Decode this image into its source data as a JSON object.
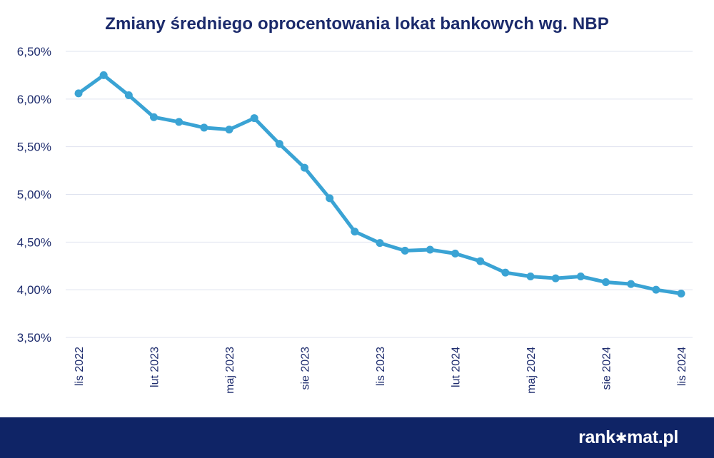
{
  "title": "Zmiany średniego oprocentowania lokat bankowych wg. NBP",
  "brand": {
    "before": "rank",
    "icon": "star-icon",
    "after": "mat.pl"
  },
  "colors": {
    "line": "#3aa3d4",
    "title": "#1b2a6b",
    "footer": "#0f2466",
    "grid": "#dfe3ef"
  },
  "chart_data": {
    "type": "line",
    "title": "Zmiany średniego oprocentowania lokat bankowych wg. NBP",
    "xlabel": "",
    "ylabel": "",
    "ylim": [
      3.5,
      6.5
    ],
    "y_ticks": [
      "6,50%",
      "6,00%",
      "5,50%",
      "5,00%",
      "4,50%",
      "4,00%",
      "3,50%"
    ],
    "y_tick_values": [
      6.5,
      6.0,
      5.5,
      5.0,
      4.5,
      4.0,
      3.5
    ],
    "x_tick_labels": [
      "lis 2022",
      "lut 2023",
      "maj 2023",
      "sie 2023",
      "lis 2023",
      "lut 2024",
      "maj 2024",
      "sie 2024",
      "lis 2024"
    ],
    "x_tick_indices": [
      0,
      3,
      6,
      9,
      12,
      15,
      18,
      21,
      24
    ],
    "grid": true,
    "legend": "none",
    "categories": [
      "2022-11",
      "2022-12",
      "2023-01",
      "2023-02",
      "2023-03",
      "2023-04",
      "2023-05",
      "2023-06",
      "2023-07",
      "2023-08",
      "2023-09",
      "2023-10",
      "2023-11",
      "2023-12",
      "2024-01",
      "2024-02",
      "2024-03",
      "2024-04",
      "2024-05",
      "2024-06",
      "2024-07",
      "2024-08",
      "2024-09",
      "2024-10",
      "2024-11"
    ],
    "series": [
      {
        "values": [
          6.06,
          6.25,
          6.04,
          5.81,
          5.76,
          5.7,
          5.68,
          5.8,
          5.53,
          5.28,
          4.96,
          4.61,
          4.49,
          4.41,
          4.42,
          4.38,
          4.3,
          4.18,
          4.14,
          4.12,
          4.14,
          4.08,
          4.06,
          4.0,
          3.96
        ]
      }
    ]
  }
}
